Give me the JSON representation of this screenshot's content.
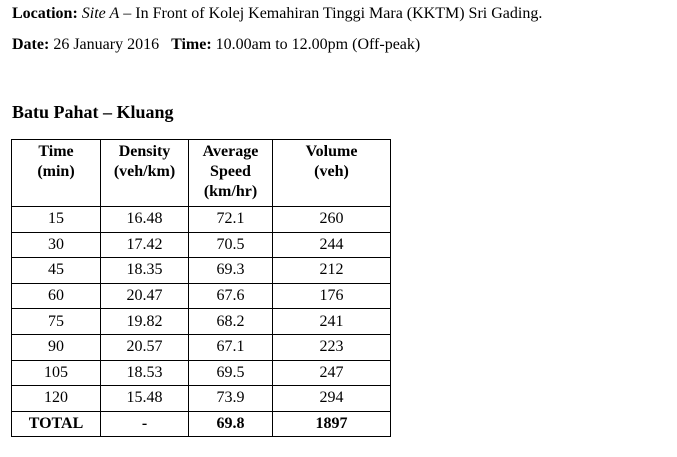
{
  "location": {
    "label": "Location:",
    "site": "Site A",
    "text": "– In Front of Kolej Kemahiran Tinggi Mara (KKTM) Sri Gading."
  },
  "date": {
    "label": "Date:",
    "value": "26 January 2016"
  },
  "time": {
    "label": "Time:",
    "value": "10.00am to 12.00pm (Off-peak)"
  },
  "section_title": "Batu Pahat – Kluang",
  "table": {
    "header": [
      [
        "Time",
        "(min)"
      ],
      [
        "Density",
        "(veh/km)"
      ],
      [
        "Average",
        "Speed",
        "(km/hr)"
      ],
      [
        "Volume",
        "(veh)"
      ]
    ],
    "rows": [
      [
        "15",
        "16.48",
        "72.1",
        "260"
      ],
      [
        "30",
        "17.42",
        "70.5",
        "244"
      ],
      [
        "45",
        "18.35",
        "69.3",
        "212"
      ],
      [
        "60",
        "20.47",
        "67.6",
        "176"
      ],
      [
        "75",
        "19.82",
        "68.2",
        "241"
      ],
      [
        "90",
        "20.57",
        "67.1",
        "223"
      ],
      [
        "105",
        "18.53",
        "69.5",
        "247"
      ],
      [
        "120",
        "15.48",
        "73.9",
        "294"
      ]
    ],
    "total": [
      "TOTAL",
      "-",
      "69.8",
      "1897"
    ]
  }
}
